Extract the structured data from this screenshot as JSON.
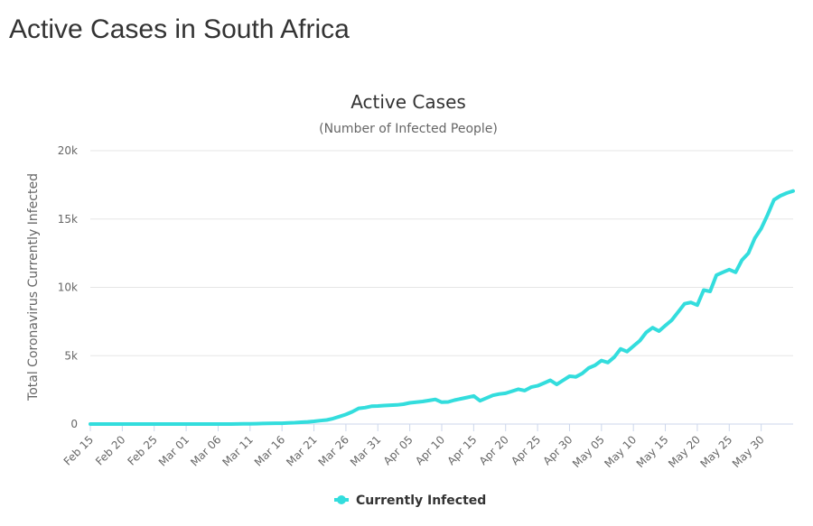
{
  "page_title": "Active Cases in South Africa",
  "chart_data": {
    "type": "line",
    "title": "Active Cases",
    "subtitle": "(Number of Infected People)",
    "y_label": "Total Coronavirus Currently Infected",
    "categories": [
      "Feb 15",
      null,
      null,
      null,
      null,
      "Feb 20",
      null,
      null,
      null,
      null,
      "Feb 25",
      null,
      null,
      null,
      null,
      "Mar 01",
      null,
      null,
      null,
      null,
      "Mar 06",
      null,
      null,
      null,
      null,
      "Mar 11",
      null,
      null,
      null,
      null,
      "Mar 16",
      null,
      null,
      null,
      null,
      "Mar 21",
      null,
      null,
      null,
      null,
      "Mar 26",
      null,
      null,
      null,
      null,
      "Mar 31",
      null,
      null,
      null,
      null,
      "Apr 05",
      null,
      null,
      null,
      null,
      "Apr 10",
      null,
      null,
      null,
      null,
      "Apr 15",
      null,
      null,
      null,
      null,
      "Apr 20",
      null,
      null,
      null,
      null,
      "Apr 25",
      null,
      null,
      null,
      null,
      "Apr 30",
      null,
      null,
      null,
      null,
      "May 05",
      null,
      null,
      null,
      null,
      "May 10",
      null,
      null,
      null,
      null,
      "May 15",
      null,
      null,
      null,
      null,
      "May 20",
      null,
      null,
      null,
      null,
      "May 25",
      null,
      null,
      null,
      null,
      "May 30",
      null,
      null,
      null,
      null,
      null
    ],
    "series": [
      {
        "name": "Currently Infected",
        "color": "#33dddd",
        "values": [
          0,
          0,
          0,
          0,
          0,
          0,
          0,
          0,
          0,
          0,
          0,
          0,
          0,
          0,
          0,
          0,
          0,
          0,
          0,
          1,
          1,
          2,
          3,
          7,
          13,
          16,
          24,
          38,
          51,
          62,
          60,
          80,
          100,
          130,
          160,
          200,
          250,
          300,
          400,
          550,
          700,
          900,
          1150,
          1200,
          1300,
          1320,
          1350,
          1380,
          1400,
          1450,
          1550,
          1600,
          1650,
          1720,
          1800,
          1600,
          1620,
          1750,
          1850,
          1950,
          2050,
          1700,
          1900,
          2100,
          2200,
          2250,
          2400,
          2550,
          2450,
          2700,
          2800,
          3000,
          3200,
          2900,
          3200,
          3500,
          3450,
          3700,
          4100,
          4300,
          4650,
          4500,
          4900,
          5500,
          5300,
          5700,
          6100,
          6700,
          7050,
          6800,
          7200,
          7600,
          8200,
          8800,
          8900,
          8700,
          9800,
          9700,
          10900,
          11100,
          11300,
          11100,
          12000,
          12500,
          13600,
          14300,
          15300,
          16400,
          16700,
          16900,
          17050
        ]
      }
    ],
    "ylim": [
      0,
      20000
    ],
    "yticks": [
      0,
      {
        "value": 5000,
        "label": "5k"
      },
      {
        "value": 10000,
        "label": "10k"
      },
      {
        "value": 15000,
        "label": "15k"
      },
      {
        "value": 20000,
        "label": "20k"
      }
    ],
    "grid": true,
    "legend": "bottom"
  }
}
